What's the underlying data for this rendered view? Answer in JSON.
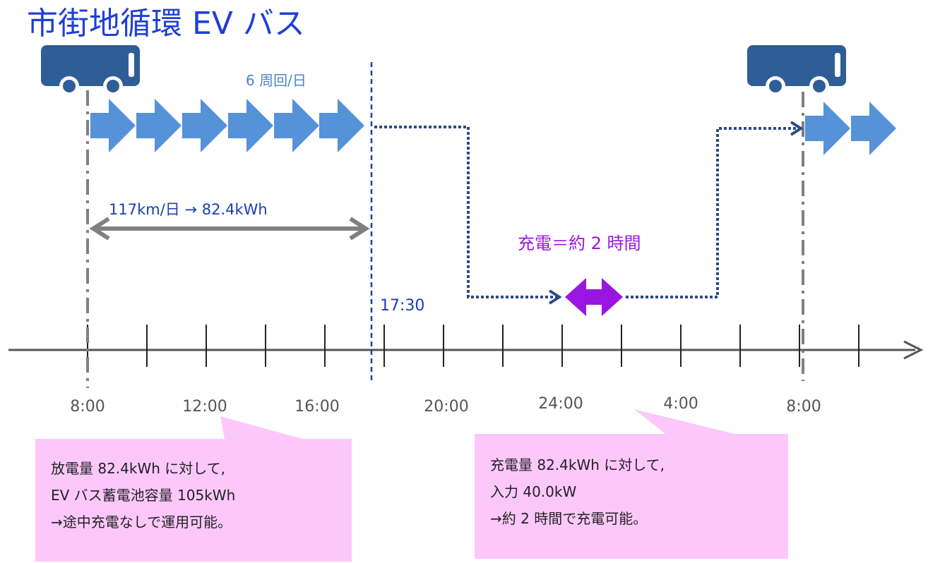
{
  "title": "市街地循環 EV バス",
  "laps_label": "6 周回/日",
  "distance_label": "117km/日 → 82.4kWh",
  "charge_label": "充電＝約 2 時間",
  "end_time_label": "17:30",
  "time_ticks": [
    "8:00",
    "12:00",
    "16:00",
    "20:00",
    "24:00",
    "4:00",
    "8:00"
  ],
  "notes": {
    "left": [
      "放電量 82.4kWh に対して,",
      "EV バス蓄電池容量 105kWh",
      "→途中充電なしで運用可能。"
    ],
    "right": [
      "充電量 82.4kWh に対して,",
      "入力 40.0kW",
      "→約 2 時間で充電可能。"
    ]
  },
  "colors": {
    "title": "#1f3fd6",
    "bus": "#2f5d96",
    "trip_arrow": "#5592d8",
    "dotted_path": "#2c4a86",
    "charge": "#9a16e0",
    "callout_fill": "#fcc8fc",
    "timeline": "#555555",
    "span_arrow": "#808080"
  },
  "icons": [
    "bus-icon",
    "trip-arrow-icon",
    "charge-arrow-icon"
  ]
}
